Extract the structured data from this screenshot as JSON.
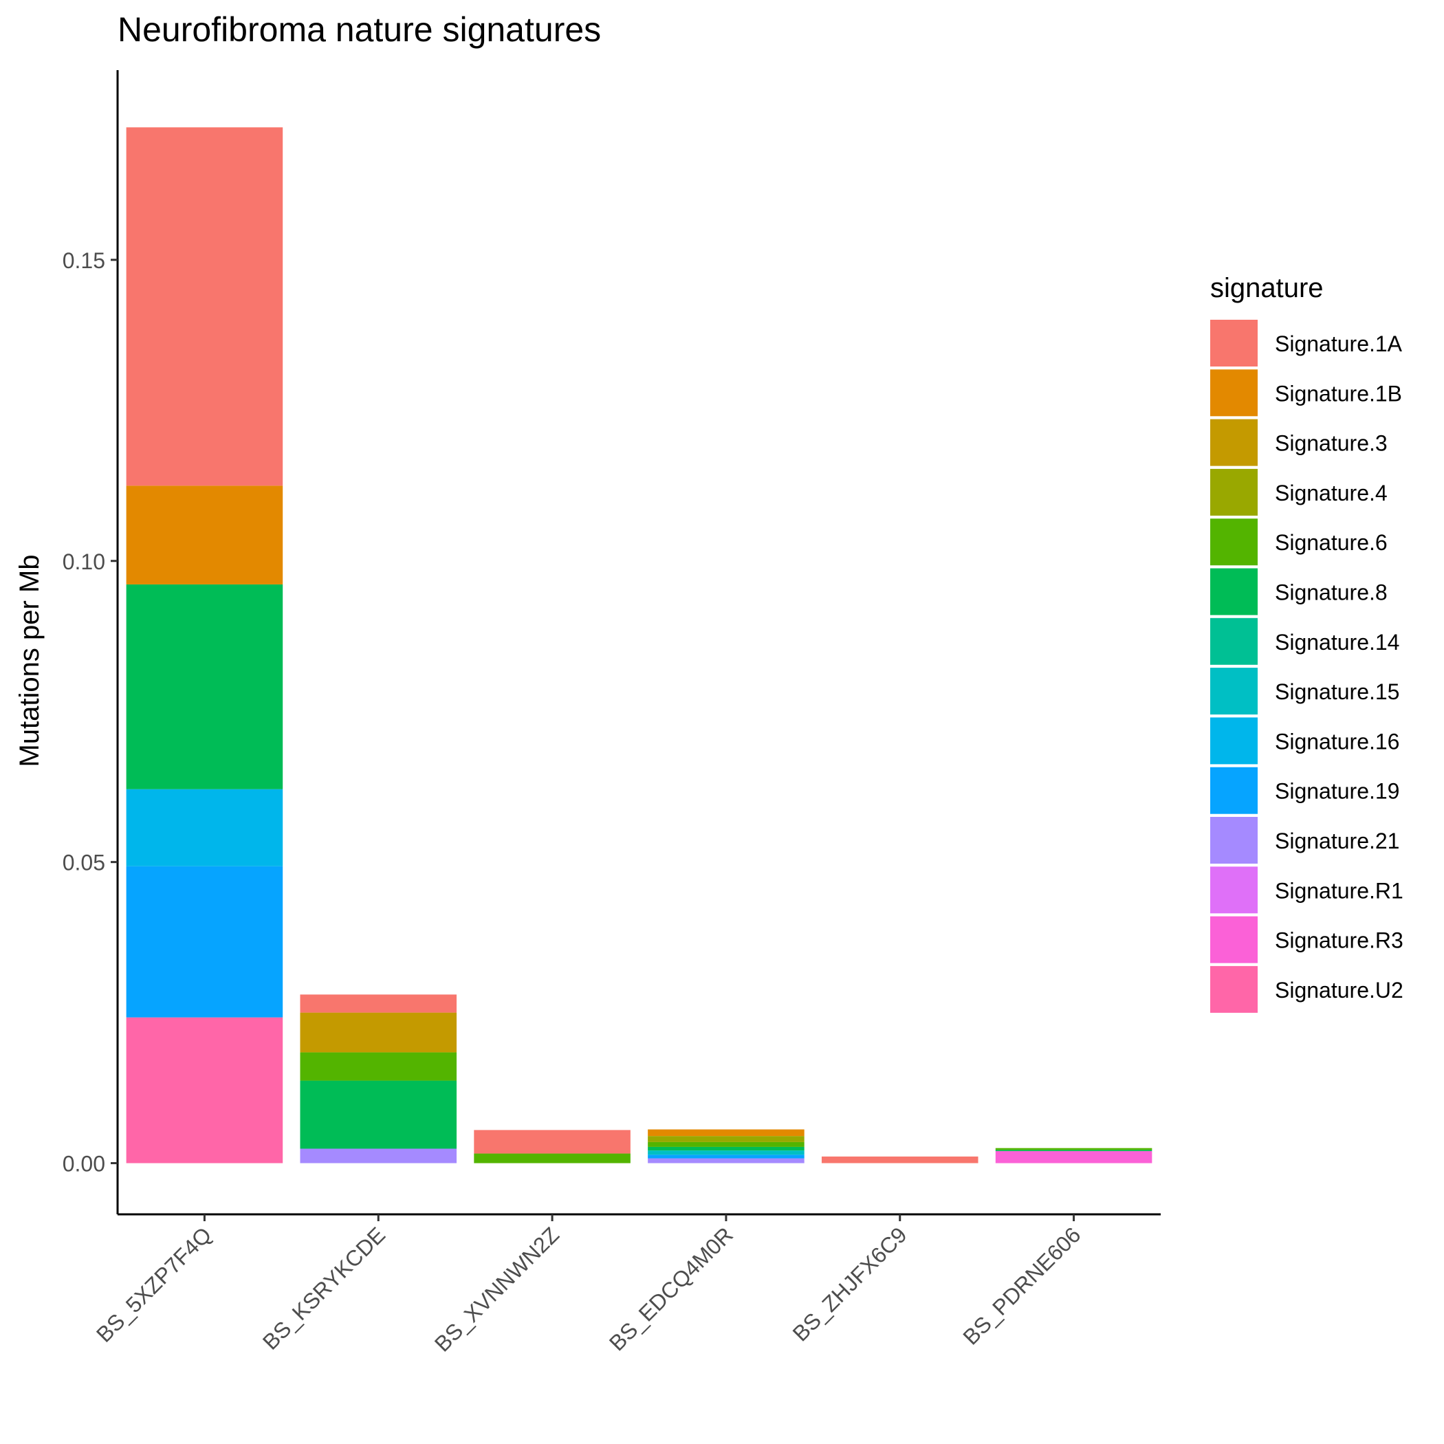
{
  "chart_data": {
    "type": "bar",
    "stacked": true,
    "title": "Neurofibroma nature signatures",
    "xlabel": "",
    "ylabel": "Mutations per Mb",
    "ylim": [
      -0.0085,
      0.1815
    ],
    "y_ticks": [
      "0.00",
      "0.05",
      "0.10",
      "0.15"
    ],
    "y_tick_values": [
      0,
      0.05,
      0.1,
      0.15
    ],
    "grid": false,
    "legend_title": "signature",
    "legend_position": "right",
    "categories": [
      "BS_5XZP7F4Q",
      "BS_KSRYKCDE",
      "BS_XVNNWN2Z",
      "BS_EDCQ4M0R",
      "BS_ZHJFX6C9",
      "BS_PDRNE606"
    ],
    "series": [
      {
        "name": "Signature.1A",
        "color": "#F8766D",
        "values": [
          0.0595,
          0.003,
          0.0039,
          0.0,
          0.0011,
          0.0
        ]
      },
      {
        "name": "Signature.1B",
        "color": "#E38900",
        "values": [
          0.0164,
          0.0,
          0.0,
          0.0011,
          0.0,
          0.0
        ]
      },
      {
        "name": "Signature.3",
        "color": "#C49A00",
        "values": [
          0.0,
          0.0066,
          0.0,
          0.0,
          0.0,
          0.0
        ]
      },
      {
        "name": "Signature.4",
        "color": "#99A800",
        "values": [
          0.0,
          0.0,
          0.0,
          0.001,
          0.0,
          0.0
        ]
      },
      {
        "name": "Signature.6",
        "color": "#53B400",
        "values": [
          0.0,
          0.0047,
          0.0016,
          0.0008,
          0.0,
          0.0003
        ]
      },
      {
        "name": "Signature.8",
        "color": "#00BC56",
        "values": [
          0.034,
          0.0113,
          0.0,
          0.0006,
          0.0,
          0.0002
        ]
      },
      {
        "name": "Signature.14",
        "color": "#00C094",
        "values": [
          0.0,
          0.0,
          0.0,
          0.0,
          0.0,
          0.0
        ]
      },
      {
        "name": "Signature.15",
        "color": "#00BFC4",
        "values": [
          0.0,
          0.0,
          0.0,
          0.0007,
          0.0,
          0.0
        ]
      },
      {
        "name": "Signature.16",
        "color": "#00B6EB",
        "values": [
          0.0128,
          0.0,
          0.0,
          0.0,
          0.0,
          0.0
        ]
      },
      {
        "name": "Signature.19",
        "color": "#06A4FF",
        "values": [
          0.0251,
          0.0,
          0.0,
          0.0006,
          0.0,
          0.0
        ]
      },
      {
        "name": "Signature.21",
        "color": "#A58AFF",
        "values": [
          0.0,
          0.0024,
          0.0,
          0.0008,
          0.0,
          0.0
        ]
      },
      {
        "name": "Signature.R1",
        "color": "#DF70F8",
        "values": [
          0.0,
          0.0,
          0.0,
          0.0,
          0.0,
          0.0
        ]
      },
      {
        "name": "Signature.R3",
        "color": "#FB61D7",
        "values": [
          0.0,
          0.0,
          0.0,
          0.0,
          0.0,
          0.002
        ]
      },
      {
        "name": "Signature.U2",
        "color": "#FF66A8",
        "values": [
          0.0242,
          0.0,
          0.0,
          0.0,
          0.0,
          0.0
        ]
      }
    ]
  }
}
